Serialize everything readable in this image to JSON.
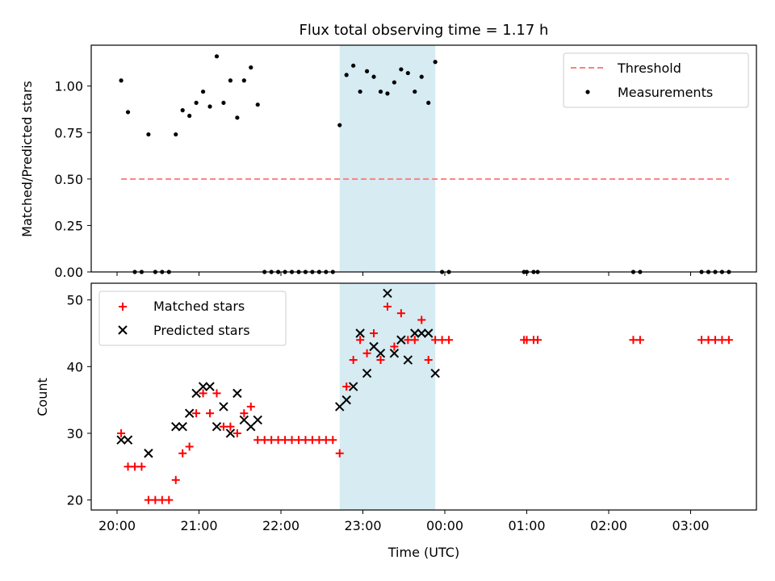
{
  "chart_data": {
    "title": "Flux total observing time = 1.17 h",
    "xlabel": "Time (UTC)",
    "x_ticks": [
      "20:00",
      "21:00",
      "22:00",
      "23:00",
      "00:00",
      "01:00",
      "02:00",
      "03:00"
    ],
    "colors": {
      "threshold": "#ff7f7f",
      "measurements": "#000000",
      "matched": "#ff0000",
      "predicted": "#000000",
      "highlight": "#add8e6"
    },
    "highlight_band": {
      "start": "22:43",
      "end": "23:53"
    },
    "panels": [
      {
        "type": "scatter",
        "ylabel": "Matched/Predicted stars",
        "ylim": [
          0,
          1.22
        ],
        "y_ticks": [
          "0.00",
          "0.25",
          "0.50",
          "0.75",
          "1.00"
        ],
        "legend_position": "top-right",
        "series": [
          {
            "name": "Threshold",
            "kind": "dashed-line",
            "points": [
              [
                "20:03",
                0.5
              ],
              [
                "03:28",
                0.5
              ]
            ]
          },
          {
            "name": "Measurements",
            "kind": "dot",
            "points": [
              [
                "20:03",
                1.03
              ],
              [
                "20:08",
                0.86
              ],
              [
                "20:13",
                0.0
              ],
              [
                "20:18",
                0.0
              ],
              [
                "20:23",
                0.74
              ],
              [
                "20:28",
                0.0
              ],
              [
                "20:33",
                0.0
              ],
              [
                "20:38",
                0.0
              ],
              [
                "20:43",
                0.74
              ],
              [
                "20:48",
                0.87
              ],
              [
                "20:53",
                0.84
              ],
              [
                "20:58",
                0.91
              ],
              [
                "21:03",
                0.97
              ],
              [
                "21:08",
                0.89
              ],
              [
                "21:13",
                1.16
              ],
              [
                "21:18",
                0.91
              ],
              [
                "21:23",
                1.03
              ],
              [
                "21:28",
                0.83
              ],
              [
                "21:33",
                1.03
              ],
              [
                "21:38",
                1.1
              ],
              [
                "21:43",
                0.9
              ],
              [
                "21:48",
                0.0
              ],
              [
                "21:53",
                0.0
              ],
              [
                "21:58",
                0.0
              ],
              [
                "22:03",
                0.0
              ],
              [
                "22:08",
                0.0
              ],
              [
                "22:13",
                0.0
              ],
              [
                "22:18",
                0.0
              ],
              [
                "22:23",
                0.0
              ],
              [
                "22:28",
                0.0
              ],
              [
                "22:33",
                0.0
              ],
              [
                "22:38",
                0.0
              ],
              [
                "22:43",
                0.79
              ],
              [
                "22:48",
                1.06
              ],
              [
                "22:53",
                1.11
              ],
              [
                "22:58",
                0.97
              ],
              [
                "23:03",
                1.08
              ],
              [
                "23:08",
                1.05
              ],
              [
                "23:13",
                0.97
              ],
              [
                "23:18",
                0.96
              ],
              [
                "23:23",
                1.02
              ],
              [
                "23:28",
                1.09
              ],
              [
                "23:33",
                1.07
              ],
              [
                "23:38",
                0.97
              ],
              [
                "23:43",
                1.05
              ],
              [
                "23:48",
                0.91
              ],
              [
                "23:53",
                1.13
              ],
              [
                "23:58",
                0.0
              ],
              [
                "00:03",
                0.0
              ],
              [
                "00:58",
                0.0
              ],
              [
                "01:00",
                0.0
              ],
              [
                "01:05",
                0.0
              ],
              [
                "01:08",
                0.0
              ],
              [
                "02:18",
                0.0
              ],
              [
                "02:23",
                0.0
              ],
              [
                "03:08",
                0.0
              ],
              [
                "03:13",
                0.0
              ],
              [
                "03:18",
                0.0
              ],
              [
                "03:23",
                0.0
              ],
              [
                "03:28",
                0.0
              ]
            ]
          }
        ]
      },
      {
        "type": "scatter",
        "ylabel": "Count",
        "ylim": [
          18.5,
          52.5
        ],
        "y_ticks": [
          "20",
          "30",
          "40",
          "50"
        ],
        "legend_position": "top-left",
        "series": [
          {
            "name": "Matched stars",
            "kind": "plus",
            "points": [
              [
                "20:03",
                30
              ],
              [
                "20:08",
                25
              ],
              [
                "20:13",
                25
              ],
              [
                "20:18",
                25
              ],
              [
                "20:23",
                20
              ],
              [
                "20:28",
                20
              ],
              [
                "20:33",
                20
              ],
              [
                "20:38",
                20
              ],
              [
                "20:43",
                23
              ],
              [
                "20:48",
                27
              ],
              [
                "20:53",
                28
              ],
              [
                "20:58",
                33
              ],
              [
                "21:03",
                36
              ],
              [
                "21:08",
                33
              ],
              [
                "21:13",
                36
              ],
              [
                "21:18",
                31
              ],
              [
                "21:23",
                31
              ],
              [
                "21:28",
                30
              ],
              [
                "21:33",
                33
              ],
              [
                "21:38",
                34
              ],
              [
                "21:43",
                29
              ],
              [
                "21:48",
                29
              ],
              [
                "21:53",
                29
              ],
              [
                "21:58",
                29
              ],
              [
                "22:03",
                29
              ],
              [
                "22:08",
                29
              ],
              [
                "22:13",
                29
              ],
              [
                "22:18",
                29
              ],
              [
                "22:23",
                29
              ],
              [
                "22:28",
                29
              ],
              [
                "22:33",
                29
              ],
              [
                "22:38",
                29
              ],
              [
                "22:43",
                27
              ],
              [
                "22:48",
                37
              ],
              [
                "22:53",
                41
              ],
              [
                "22:58",
                44
              ],
              [
                "23:03",
                42
              ],
              [
                "23:08",
                45
              ],
              [
                "23:13",
                41
              ],
              [
                "23:18",
                49
              ],
              [
                "23:23",
                43
              ],
              [
                "23:28",
                48
              ],
              [
                "23:33",
                44
              ],
              [
                "23:38",
                44
              ],
              [
                "23:43",
                47
              ],
              [
                "23:48",
                41
              ],
              [
                "23:53",
                44
              ],
              [
                "23:58",
                44
              ],
              [
                "00:03",
                44
              ],
              [
                "00:58",
                44
              ],
              [
                "01:00",
                44
              ],
              [
                "01:05",
                44
              ],
              [
                "01:08",
                44
              ],
              [
                "02:18",
                44
              ],
              [
                "02:23",
                44
              ],
              [
                "03:08",
                44
              ],
              [
                "03:13",
                44
              ],
              [
                "03:18",
                44
              ],
              [
                "03:23",
                44
              ],
              [
                "03:28",
                44
              ]
            ]
          },
          {
            "name": "Predicted stars",
            "kind": "cross",
            "points": [
              [
                "20:03",
                29
              ],
              [
                "20:08",
                29
              ],
              [
                "20:23",
                27
              ],
              [
                "20:43",
                31
              ],
              [
                "20:48",
                31
              ],
              [
                "20:53",
                33
              ],
              [
                "20:58",
                36
              ],
              [
                "21:03",
                37
              ],
              [
                "21:08",
                37
              ],
              [
                "21:13",
                31
              ],
              [
                "21:18",
                34
              ],
              [
                "21:23",
                30
              ],
              [
                "21:28",
                36
              ],
              [
                "21:33",
                32
              ],
              [
                "21:38",
                31
              ],
              [
                "21:43",
                32
              ],
              [
                "22:43",
                34
              ],
              [
                "22:48",
                35
              ],
              [
                "22:53",
                37
              ],
              [
                "22:58",
                45
              ],
              [
                "23:03",
                39
              ],
              [
                "23:08",
                43
              ],
              [
                "23:13",
                42
              ],
              [
                "23:18",
                51
              ],
              [
                "23:23",
                42
              ],
              [
                "23:28",
                44
              ],
              [
                "23:33",
                41
              ],
              [
                "23:38",
                45
              ],
              [
                "23:43",
                45
              ],
              [
                "23:48",
                45
              ],
              [
                "23:53",
                39
              ]
            ]
          }
        ]
      }
    ]
  }
}
